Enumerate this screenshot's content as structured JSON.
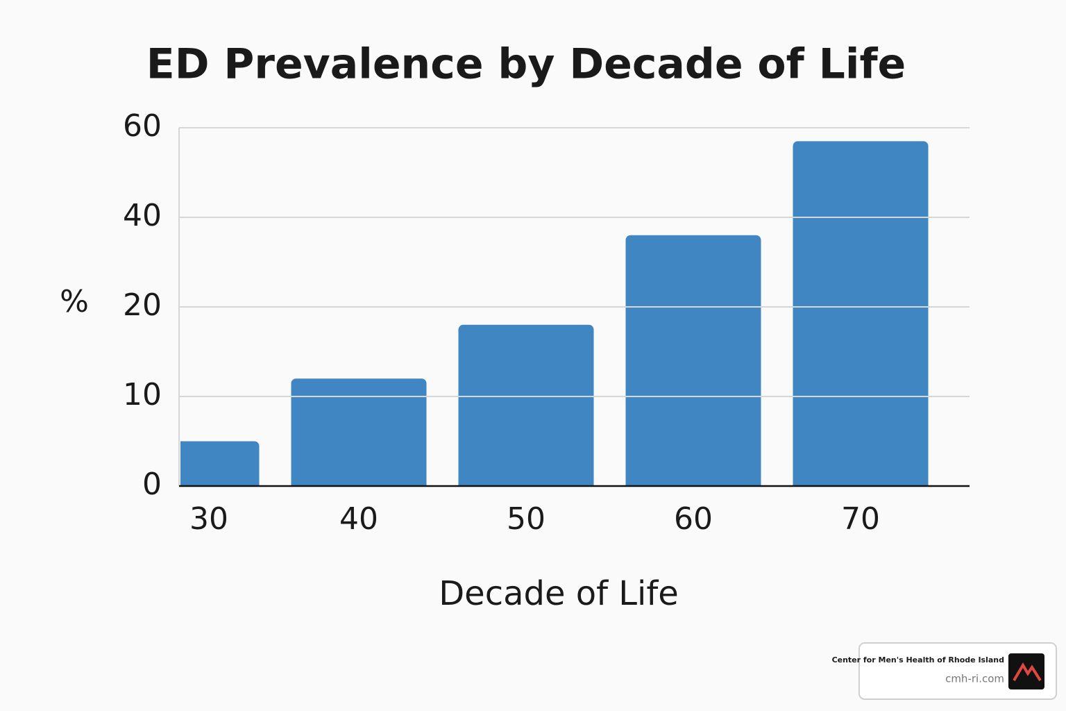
{
  "chart_data": {
    "type": "bar",
    "title": "ED Prevalence by Decade of Life",
    "x_label": "Decade of Life",
    "y_label": "%",
    "categories": [
      "30",
      "40",
      "50",
      "60",
      "70"
    ],
    "values": [
      5,
      12,
      18,
      36,
      57
    ],
    "color": "#3f86c2",
    "ylim": [
      0,
      60
    ],
    "yticks": [
      0,
      10,
      20,
      40,
      60
    ],
    "grid": true
  },
  "watermark": {
    "name": "Center for Men's Health of Rhode Island",
    "url": "cmh-ri.com"
  }
}
